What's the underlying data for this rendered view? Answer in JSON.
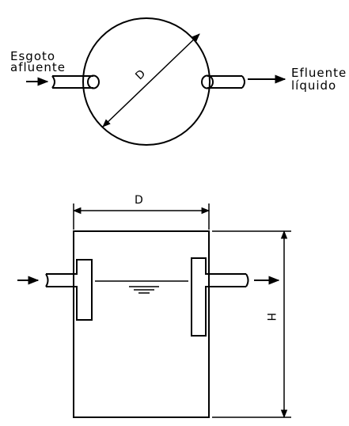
{
  "top_view": {
    "inlet_label_line1": "Esgoto",
    "inlet_label_line2": "afluente",
    "outlet_label_line1": "Efluente",
    "outlet_label_line2": "líquido",
    "diameter_label": "D"
  },
  "section_view": {
    "width_label": "D",
    "height_label": "H"
  }
}
